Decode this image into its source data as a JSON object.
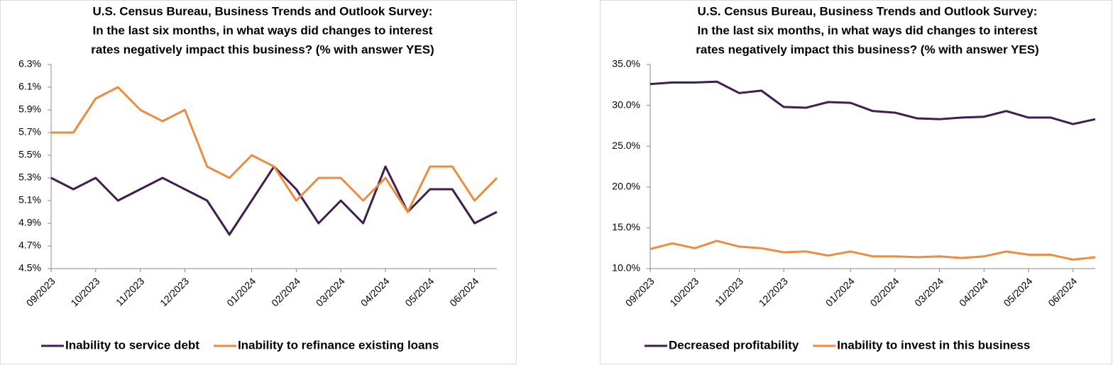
{
  "chart_data": [
    {
      "type": "line",
      "title": [
        "U.S. Census  Bureau,  Business  Trends  and  Outlook Survey:",
        "In the last six months, in what ways did changes to interest",
        "rates negatively impact this business? (% with answer YES)"
      ],
      "categories": [
        "09/2023",
        null,
        "10/2023",
        null,
        "11/2023",
        null,
        "12/2023",
        null,
        null,
        "01/2024",
        null,
        "02/2024",
        null,
        "03/2024",
        null,
        "04/2024",
        null,
        "05/2024",
        null,
        "06/2024",
        null
      ],
      "series": [
        {
          "name": "Inability to service debt",
          "color": "#3f1d4f",
          "values": [
            5.3,
            5.2,
            5.3,
            5.1,
            5.2,
            5.3,
            5.2,
            5.1,
            4.8,
            5.1,
            5.4,
            5.2,
            4.9,
            5.1,
            4.9,
            5.4,
            5.0,
            5.2,
            5.2,
            4.9,
            5.0
          ]
        },
        {
          "name": "Inability to refinance existing loans",
          "color": "#ed8b3f",
          "values": [
            5.7,
            5.7,
            6.0,
            6.1,
            5.9,
            5.8,
            5.9,
            5.4,
            5.3,
            5.5,
            5.4,
            5.1,
            5.3,
            5.3,
            5.1,
            5.3,
            5.0,
            5.4,
            5.4,
            5.1,
            5.3
          ]
        }
      ],
      "ylim": [
        4.5,
        6.3
      ],
      "yticks": [
        {
          "value": 4.5,
          "label": "4.5%"
        },
        {
          "value": 4.7,
          "label": "4.7%"
        },
        {
          "value": 4.9,
          "label": "4.9%"
        },
        {
          "value": 5.1,
          "label": "5.1%"
        },
        {
          "value": 5.3,
          "label": "5.3%"
        },
        {
          "value": 5.5,
          "label": "5.5%"
        },
        {
          "value": 5.7,
          "label": "5.7%"
        },
        {
          "value": 5.9,
          "label": "5.9%"
        },
        {
          "value": 6.1,
          "label": "6.1%"
        },
        {
          "value": 6.3,
          "label": "6.3%"
        }
      ],
      "legend": "bottom"
    },
    {
      "type": "line",
      "title": [
        "U.S. Census  Bureau,  Business  Trends  and  Outlook Survey:",
        "In the last six months, in what ways did changes to interest",
        "rates negatively impact this business? (% with answer YES)"
      ],
      "categories": [
        "09/2023",
        null,
        "10/2023",
        null,
        "11/2023",
        null,
        "12/2023",
        null,
        null,
        "01/2024",
        null,
        "02/2024",
        null,
        "03/2024",
        null,
        "04/2024",
        null,
        "05/2024",
        null,
        "06/2024",
        null
      ],
      "series": [
        {
          "name": "Decreased profitability",
          "color": "#3f1d4f",
          "values": [
            32.6,
            32.8,
            32.8,
            32.9,
            31.5,
            31.8,
            29.8,
            29.7,
            30.4,
            30.3,
            29.3,
            29.1,
            28.4,
            28.3,
            28.5,
            28.6,
            29.3,
            28.5,
            28.5,
            27.7,
            28.3
          ]
        },
        {
          "name": "Inability to invest in this business",
          "color": "#ed8b3f",
          "values": [
            12.4,
            13.1,
            12.5,
            13.4,
            12.7,
            12.5,
            12.0,
            12.1,
            11.6,
            12.1,
            11.5,
            11.5,
            11.4,
            11.5,
            11.3,
            11.5,
            12.1,
            11.7,
            11.7,
            11.1,
            11.4
          ]
        }
      ],
      "ylim": [
        10,
        35
      ],
      "yticks": [
        {
          "value": 10,
          "label": "10.0%"
        },
        {
          "value": 15,
          "label": "15.0%"
        },
        {
          "value": 20,
          "label": "20.0%"
        },
        {
          "value": 25,
          "label": "25.0%"
        },
        {
          "value": 30,
          "label": "30.0%"
        },
        {
          "value": 35,
          "label": "35.0%"
        }
      ],
      "legend": "bottom"
    }
  ]
}
